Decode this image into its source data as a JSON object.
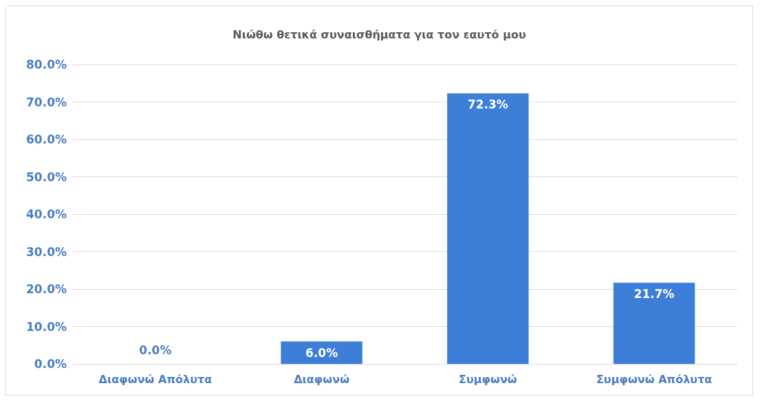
{
  "chart_data": {
    "type": "bar",
    "title": "Νιώθω θετικά συναισθήματα για τον εαυτό μου",
    "categories": [
      "Διαφωνώ Απόλυτα",
      "Διαφωνώ",
      "Συμφωνώ",
      "Συμφωνώ Απόλυτα"
    ],
    "values": [
      0,
      6.0,
      72.3,
      21.7
    ],
    "value_labels": [
      "0.0%",
      "6.0%",
      "72.3%",
      "21.7%"
    ],
    "color": "#3d7ed8",
    "ylim": [
      0,
      80
    ],
    "yticks": [
      {
        "value": 0,
        "label": "0.0%"
      },
      {
        "value": 10,
        "label": "10.0%"
      },
      {
        "value": 20,
        "label": "20.0%"
      },
      {
        "value": 30,
        "label": "30.0%"
      },
      {
        "value": 40,
        "label": "40.0%"
      },
      {
        "value": 50,
        "label": "50.0%"
      },
      {
        "value": 60,
        "label": "60.0%"
      },
      {
        "value": 70,
        "label": "70.0%"
      },
      {
        "value": 80,
        "label": "80.0%"
      }
    ],
    "grid": "y"
  }
}
